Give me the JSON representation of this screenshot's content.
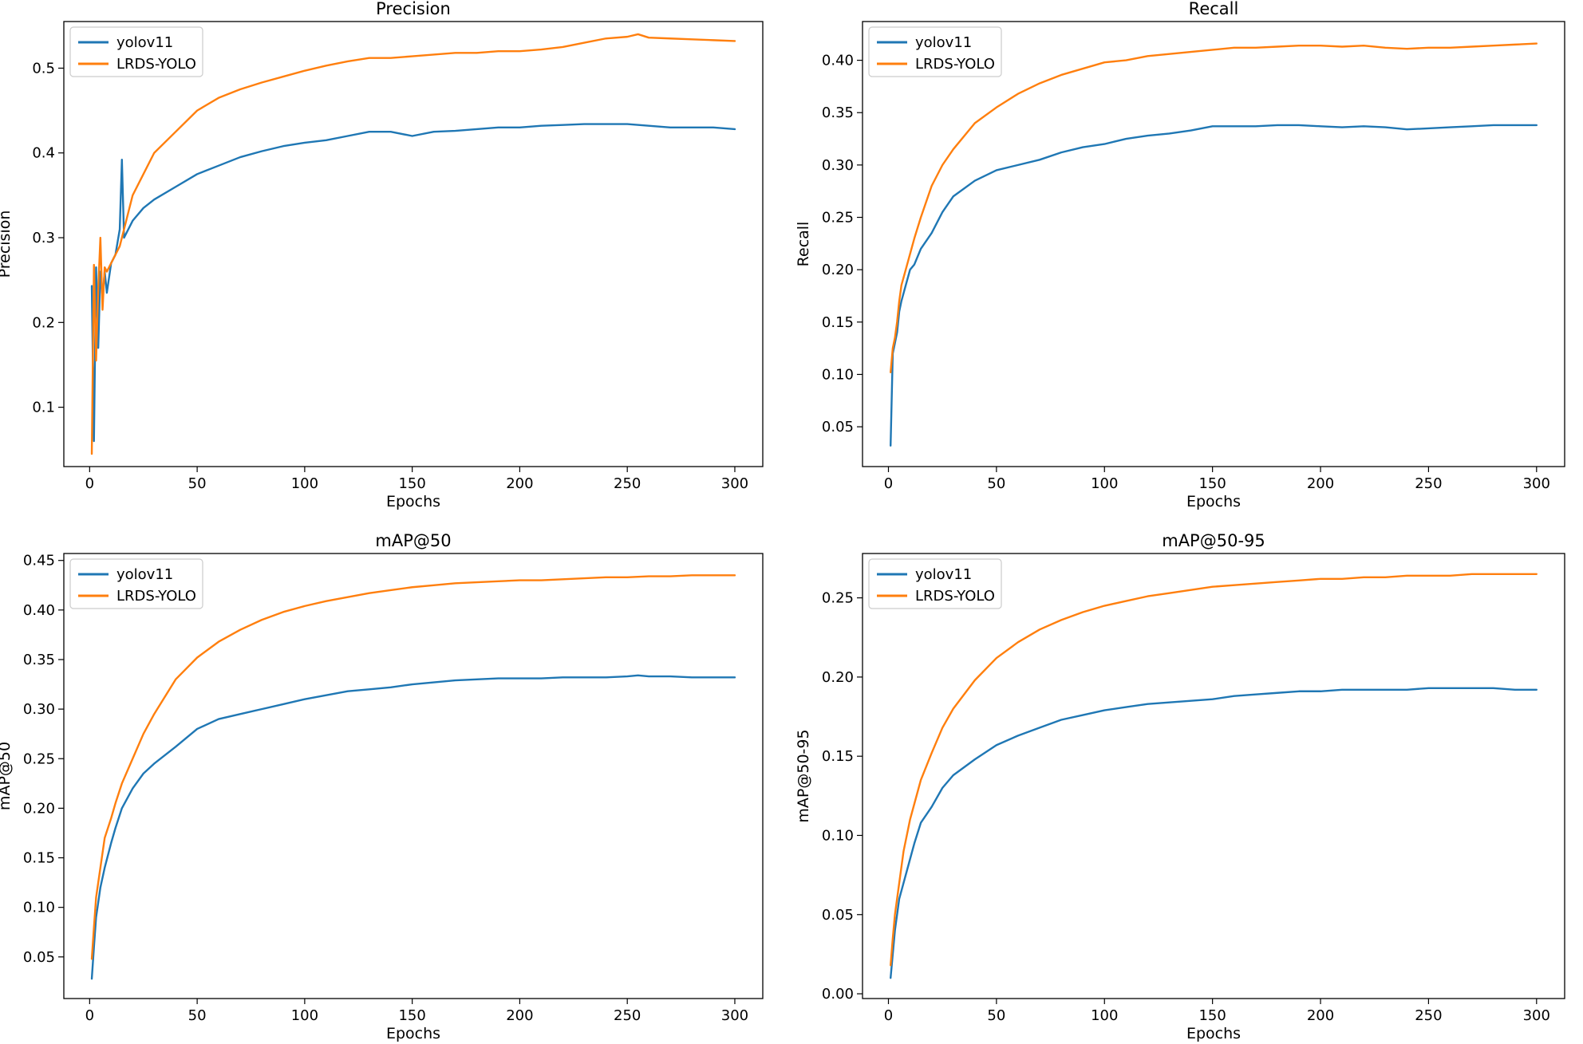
{
  "colors": {
    "yolov11": "#1f77b4",
    "lrds": "#ff7f0e",
    "axes": "#000000",
    "legend_border": "#cccccc"
  },
  "chart_data": [
    {
      "type": "line",
      "title": "Precision",
      "xlabel": "Epochs",
      "ylabel": "Precision",
      "xlim": [
        -12,
        313
      ],
      "ylim": [
        0.03,
        0.555
      ],
      "xticks": [
        0,
        50,
        100,
        150,
        200,
        250,
        300
      ],
      "yticks": [
        0.1,
        0.2,
        0.3,
        0.4,
        0.5
      ],
      "ytick_decimals": 1,
      "legend": "top-left",
      "series": [
        {
          "name": "yolov11",
          "color": "#1f77b4",
          "x": [
            1,
            2,
            3,
            4,
            5,
            6,
            7,
            8,
            10,
            12,
            14,
            15,
            16,
            18,
            20,
            25,
            30,
            40,
            50,
            60,
            70,
            80,
            90,
            100,
            110,
            120,
            130,
            140,
            150,
            160,
            170,
            180,
            190,
            200,
            210,
            220,
            230,
            240,
            250,
            260,
            270,
            280,
            290,
            300
          ],
          "y": [
            0.243,
            0.06,
            0.265,
            0.17,
            0.26,
            0.23,
            0.26,
            0.235,
            0.27,
            0.28,
            0.31,
            0.392,
            0.3,
            0.31,
            0.32,
            0.335,
            0.345,
            0.36,
            0.375,
            0.385,
            0.395,
            0.402,
            0.408,
            0.412,
            0.415,
            0.42,
            0.425,
            0.425,
            0.42,
            0.425,
            0.426,
            0.428,
            0.43,
            0.43,
            0.432,
            0.433,
            0.434,
            0.434,
            0.434,
            0.432,
            0.43,
            0.43,
            0.43,
            0.428
          ]
        },
        {
          "name": "LRDS-YOLO",
          "color": "#ff7f0e",
          "x": [
            1,
            2,
            3,
            4,
            5,
            6,
            7,
            8,
            10,
            12,
            14,
            16,
            18,
            20,
            25,
            30,
            40,
            50,
            60,
            70,
            80,
            90,
            100,
            110,
            120,
            130,
            140,
            150,
            160,
            170,
            180,
            190,
            200,
            210,
            220,
            230,
            240,
            250,
            255,
            260,
            270,
            280,
            290,
            300
          ],
          "y": [
            0.045,
            0.268,
            0.155,
            0.24,
            0.3,
            0.215,
            0.265,
            0.26,
            0.27,
            0.28,
            0.29,
            0.31,
            0.33,
            0.35,
            0.375,
            0.4,
            0.425,
            0.45,
            0.465,
            0.475,
            0.483,
            0.49,
            0.497,
            0.503,
            0.508,
            0.512,
            0.512,
            0.514,
            0.516,
            0.518,
            0.518,
            0.52,
            0.52,
            0.522,
            0.525,
            0.53,
            0.535,
            0.537,
            0.54,
            0.536,
            0.535,
            0.534,
            0.533,
            0.532
          ]
        }
      ]
    },
    {
      "type": "line",
      "title": "Recall",
      "xlabel": "Epochs",
      "ylabel": "Recall",
      "xlim": [
        -12,
        313
      ],
      "ylim": [
        0.012,
        0.437
      ],
      "xticks": [
        0,
        50,
        100,
        150,
        200,
        250,
        300
      ],
      "yticks": [
        0.05,
        0.1,
        0.15,
        0.2,
        0.25,
        0.3,
        0.35,
        0.4
      ],
      "ytick_decimals": 2,
      "legend": "top-left",
      "series": [
        {
          "name": "yolov11",
          "color": "#1f77b4",
          "x": [
            1,
            2,
            3,
            4,
            5,
            6,
            8,
            10,
            12,
            15,
            20,
            25,
            30,
            40,
            50,
            60,
            70,
            80,
            90,
            100,
            110,
            120,
            130,
            140,
            150,
            160,
            170,
            180,
            190,
            200,
            210,
            220,
            230,
            240,
            250,
            260,
            270,
            280,
            290,
            300
          ],
          "y": [
            0.032,
            0.12,
            0.13,
            0.14,
            0.16,
            0.17,
            0.185,
            0.2,
            0.205,
            0.22,
            0.235,
            0.255,
            0.27,
            0.285,
            0.295,
            0.3,
            0.305,
            0.312,
            0.317,
            0.32,
            0.325,
            0.328,
            0.33,
            0.333,
            0.337,
            0.337,
            0.337,
            0.338,
            0.338,
            0.337,
            0.336,
            0.337,
            0.336,
            0.334,
            0.335,
            0.336,
            0.337,
            0.338,
            0.338,
            0.338
          ]
        },
        {
          "name": "LRDS-YOLO",
          "color": "#ff7f0e",
          "x": [
            1,
            2,
            3,
            4,
            5,
            6,
            8,
            10,
            12,
            15,
            20,
            25,
            30,
            40,
            50,
            60,
            70,
            80,
            90,
            100,
            110,
            120,
            130,
            140,
            150,
            160,
            170,
            180,
            190,
            200,
            210,
            220,
            230,
            240,
            250,
            260,
            270,
            280,
            290,
            300
          ],
          "y": [
            0.102,
            0.125,
            0.135,
            0.15,
            0.17,
            0.185,
            0.2,
            0.215,
            0.23,
            0.25,
            0.28,
            0.3,
            0.315,
            0.34,
            0.355,
            0.368,
            0.378,
            0.386,
            0.392,
            0.398,
            0.4,
            0.404,
            0.406,
            0.408,
            0.41,
            0.412,
            0.412,
            0.413,
            0.414,
            0.414,
            0.413,
            0.414,
            0.412,
            0.411,
            0.412,
            0.412,
            0.413,
            0.414,
            0.415,
            0.416
          ]
        }
      ]
    },
    {
      "type": "line",
      "title": "mAP@50",
      "xlabel": "Epochs",
      "ylabel": "mAP@50",
      "xlim": [
        -12,
        313
      ],
      "ylim": [
        0.008,
        0.457
      ],
      "xticks": [
        0,
        50,
        100,
        150,
        200,
        250,
        300
      ],
      "yticks": [
        0.05,
        0.1,
        0.15,
        0.2,
        0.25,
        0.3,
        0.35,
        0.4,
        0.45
      ],
      "ytick_decimals": 2,
      "legend": "top-left",
      "series": [
        {
          "name": "yolov11",
          "color": "#1f77b4",
          "x": [
            1,
            2,
            3,
            5,
            7,
            10,
            12,
            15,
            20,
            25,
            30,
            40,
            50,
            60,
            70,
            80,
            90,
            100,
            110,
            120,
            130,
            140,
            150,
            160,
            170,
            180,
            190,
            200,
            210,
            220,
            230,
            240,
            250,
            255,
            260,
            270,
            280,
            290,
            300
          ],
          "y": [
            0.028,
            0.06,
            0.09,
            0.12,
            0.14,
            0.165,
            0.18,
            0.2,
            0.22,
            0.235,
            0.245,
            0.262,
            0.28,
            0.29,
            0.295,
            0.3,
            0.305,
            0.31,
            0.314,
            0.318,
            0.32,
            0.322,
            0.325,
            0.327,
            0.329,
            0.33,
            0.331,
            0.331,
            0.331,
            0.332,
            0.332,
            0.332,
            0.333,
            0.334,
            0.333,
            0.333,
            0.332,
            0.332,
            0.332
          ]
        },
        {
          "name": "LRDS-YOLO",
          "color": "#ff7f0e",
          "x": [
            1,
            2,
            3,
            5,
            7,
            10,
            12,
            15,
            20,
            25,
            30,
            40,
            50,
            60,
            70,
            80,
            90,
            100,
            110,
            120,
            130,
            140,
            150,
            160,
            170,
            180,
            190,
            200,
            210,
            220,
            230,
            240,
            250,
            260,
            270,
            280,
            290,
            300
          ],
          "y": [
            0.048,
            0.08,
            0.11,
            0.14,
            0.17,
            0.19,
            0.205,
            0.225,
            0.25,
            0.275,
            0.295,
            0.33,
            0.352,
            0.368,
            0.38,
            0.39,
            0.398,
            0.404,
            0.409,
            0.413,
            0.417,
            0.42,
            0.423,
            0.425,
            0.427,
            0.428,
            0.429,
            0.43,
            0.43,
            0.431,
            0.432,
            0.433,
            0.433,
            0.434,
            0.434,
            0.435,
            0.435,
            0.435
          ]
        }
      ]
    },
    {
      "type": "line",
      "title": "mAP@50-95",
      "xlabel": "Epochs",
      "ylabel": "mAP@50-95",
      "xlim": [
        -12,
        313
      ],
      "ylim": [
        -0.003,
        0.278
      ],
      "xticks": [
        0,
        50,
        100,
        150,
        200,
        250,
        300
      ],
      "yticks": [
        0.0,
        0.05,
        0.1,
        0.15,
        0.2,
        0.25
      ],
      "ytick_decimals": 2,
      "legend": "top-left",
      "series": [
        {
          "name": "yolov11",
          "color": "#1f77b4",
          "x": [
            1,
            2,
            3,
            5,
            7,
            10,
            12,
            15,
            20,
            25,
            30,
            40,
            50,
            60,
            70,
            80,
            90,
            100,
            110,
            120,
            130,
            140,
            150,
            160,
            170,
            180,
            190,
            200,
            210,
            220,
            230,
            240,
            250,
            260,
            270,
            280,
            290,
            300
          ],
          "y": [
            0.01,
            0.025,
            0.04,
            0.06,
            0.07,
            0.085,
            0.095,
            0.108,
            0.118,
            0.13,
            0.138,
            0.148,
            0.157,
            0.163,
            0.168,
            0.173,
            0.176,
            0.179,
            0.181,
            0.183,
            0.184,
            0.185,
            0.186,
            0.188,
            0.189,
            0.19,
            0.191,
            0.191,
            0.192,
            0.192,
            0.192,
            0.192,
            0.193,
            0.193,
            0.193,
            0.193,
            0.192,
            0.192
          ]
        },
        {
          "name": "LRDS-YOLO",
          "color": "#ff7f0e",
          "x": [
            1,
            2,
            3,
            5,
            7,
            10,
            12,
            15,
            20,
            25,
            30,
            40,
            50,
            60,
            70,
            80,
            90,
            100,
            110,
            120,
            130,
            140,
            150,
            160,
            170,
            180,
            190,
            200,
            210,
            220,
            230,
            240,
            250,
            260,
            270,
            280,
            290,
            300
          ],
          "y": [
            0.018,
            0.035,
            0.05,
            0.07,
            0.09,
            0.11,
            0.12,
            0.135,
            0.152,
            0.168,
            0.18,
            0.198,
            0.212,
            0.222,
            0.23,
            0.236,
            0.241,
            0.245,
            0.248,
            0.251,
            0.253,
            0.255,
            0.257,
            0.258,
            0.259,
            0.26,
            0.261,
            0.262,
            0.262,
            0.263,
            0.263,
            0.264,
            0.264,
            0.264,
            0.265,
            0.265,
            0.265,
            0.265
          ]
        }
      ]
    }
  ]
}
